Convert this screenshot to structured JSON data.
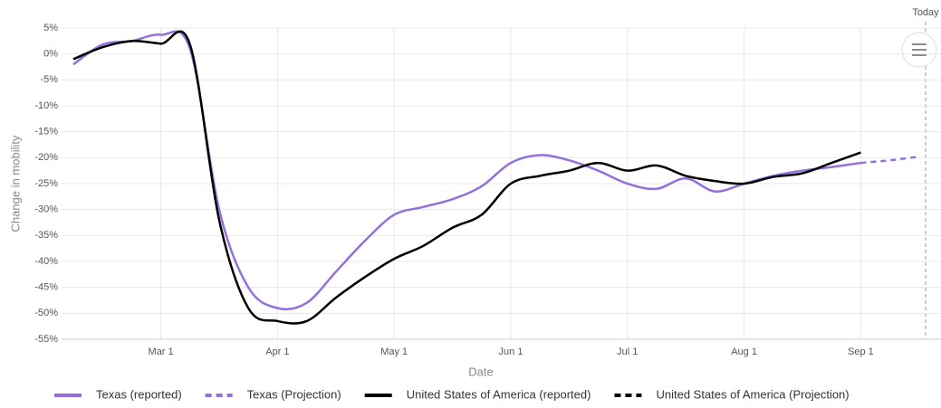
{
  "chart_data": {
    "type": "line",
    "categories": [
      null,
      null,
      null,
      "Mar 1",
      null,
      null,
      null,
      "Apr 1",
      null,
      null,
      null,
      "May 1",
      null,
      null,
      null,
      "Jun 1",
      null,
      null,
      null,
      "Jul 1",
      null,
      null,
      null,
      "Aug 1",
      null,
      null,
      null,
      "Sep 1",
      null,
      null
    ],
    "x_label": "Date",
    "y_label": "Change in mobility",
    "annotation": "Today",
    "ylim": [
      -55,
      5
    ],
    "yticks": [
      {
        "value": 5,
        "label": "5%"
      },
      {
        "value": 0,
        "label": "0%"
      },
      {
        "value": -5,
        "label": "-5%"
      },
      {
        "value": -10,
        "label": "-10%"
      },
      {
        "value": -15,
        "label": "-15%"
      },
      {
        "value": -20,
        "label": "-20%"
      },
      {
        "value": -25,
        "label": "-25%"
      },
      {
        "value": -30,
        "label": "-30%"
      },
      {
        "value": -35,
        "label": "-35%"
      },
      {
        "value": -40,
        "label": "-40%"
      },
      {
        "value": -45,
        "label": "-45%"
      },
      {
        "value": -50,
        "label": "-50%"
      },
      {
        "value": -55,
        "label": "-55%"
      }
    ],
    "grid": true,
    "series": [
      {
        "name": "Texas (reported)",
        "color": "#9370db",
        "dashed": false,
        "values": [
          -2,
          1.8,
          2.5,
          3.7,
          1,
          -30,
          -45,
          -49,
          -48,
          -42,
          -36,
          -31,
          -29.5,
          -28,
          -25.5,
          -21,
          -19.5,
          -20.5,
          -22.5,
          -25,
          -26,
          -24,
          -26.5,
          -25,
          -23.5,
          -22.5,
          -21.8,
          -21,
          null,
          null
        ]
      },
      {
        "name": "Texas (Projection)",
        "color": "#9370db",
        "dashed": true,
        "values": [
          null,
          null,
          null,
          null,
          null,
          null,
          null,
          null,
          null,
          null,
          null,
          null,
          null,
          null,
          null,
          null,
          null,
          null,
          null,
          null,
          null,
          null,
          null,
          null,
          null,
          null,
          null,
          -21,
          -20.5,
          -19.8
        ]
      },
      {
        "name": "United States of America (reported)",
        "color": "#000000",
        "dashed": false,
        "values": [
          -1,
          1.3,
          2.5,
          2,
          1.8,
          -32,
          -49,
          -51.5,
          -51.5,
          -47,
          -43,
          -39.5,
          -37,
          -33.5,
          -31,
          -25,
          -23.5,
          -22.5,
          -21,
          -22.5,
          -21.5,
          -23.5,
          -24.5,
          -25,
          -23.7,
          -23,
          -21,
          -19,
          null,
          null
        ]
      },
      {
        "name": "United States of America (Projection)",
        "color": "#000000",
        "dashed": true,
        "values": [
          null,
          null,
          null,
          null,
          null,
          null,
          null,
          null,
          null,
          null,
          null,
          null,
          null,
          null,
          null,
          null,
          null,
          null,
          null,
          null,
          null,
          null,
          null,
          null,
          null,
          null,
          null,
          null,
          null,
          null
        ]
      }
    ]
  }
}
